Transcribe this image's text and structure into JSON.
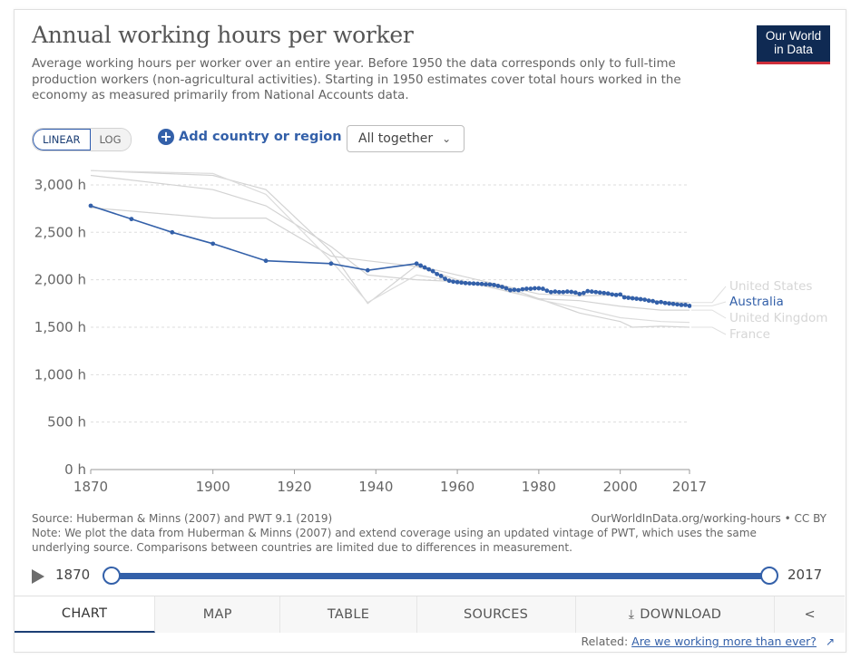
{
  "header": {
    "title": "Annual working hours per worker",
    "subtitle": "Average working hours per worker over an entire year. Before 1950 the data corresponds only to full-time production workers (non-agricultural activities). Starting in 1950 estimates cover total hours worked in the economy as measured primarily from National Accounts data.",
    "logo_line1": "Our World",
    "logo_line2": "in Data"
  },
  "controls": {
    "linear_label": "LINEAR",
    "log_label": "LOG",
    "add_country_label": "Add country or region",
    "dropdown_label": "All together"
  },
  "chart_data": {
    "type": "line",
    "title": "Annual working hours per worker",
    "ylim": [
      0,
      3200
    ],
    "xlim": [
      1870,
      2017
    ],
    "y_ticks": [
      0,
      500,
      1000,
      1500,
      2000,
      2500,
      3000
    ],
    "y_tick_labels": [
      "0 h",
      "500 h",
      "1,000 h",
      "1,500 h",
      "2,000 h",
      "2,500 h",
      "3,000 h"
    ],
    "x_ticks": [
      1870,
      1900,
      1920,
      1940,
      1960,
      1980,
      2000,
      2017
    ],
    "x_tick_labels": [
      "1870",
      "1900",
      "1920",
      "1940",
      "1960",
      "1980",
      "2000",
      "2017"
    ],
    "grid": true,
    "highlighted_series": "Australia",
    "series": [
      {
        "name": "Australia",
        "color": "#3360a9",
        "highlight": true,
        "points": [
          [
            1870,
            2780
          ],
          [
            1880,
            2640
          ],
          [
            1890,
            2500
          ],
          [
            1900,
            2380
          ],
          [
            1913,
            2200
          ],
          [
            1929,
            2170
          ],
          [
            1938,
            2100
          ],
          [
            1950,
            2170
          ],
          [
            1951,
            2150
          ],
          [
            1952,
            2130
          ],
          [
            1953,
            2110
          ],
          [
            1954,
            2090
          ],
          [
            1955,
            2060
          ],
          [
            1956,
            2040
          ],
          [
            1957,
            2010
          ],
          [
            1958,
            1990
          ],
          [
            1959,
            1980
          ],
          [
            1960,
            1975
          ],
          [
            1961,
            1970
          ],
          [
            1962,
            1965
          ],
          [
            1963,
            1962
          ],
          [
            1964,
            1960
          ],
          [
            1965,
            1958
          ],
          [
            1966,
            1955
          ],
          [
            1967,
            1952
          ],
          [
            1968,
            1950
          ],
          [
            1969,
            1945
          ],
          [
            1970,
            1935
          ],
          [
            1971,
            1925
          ],
          [
            1972,
            1910
          ],
          [
            1973,
            1890
          ],
          [
            1974,
            1895
          ],
          [
            1975,
            1890
          ],
          [
            1976,
            1900
          ],
          [
            1977,
            1905
          ],
          [
            1978,
            1905
          ],
          [
            1979,
            1910
          ],
          [
            1980,
            1910
          ],
          [
            1981,
            1905
          ],
          [
            1982,
            1885
          ],
          [
            1983,
            1870
          ],
          [
            1984,
            1875
          ],
          [
            1985,
            1870
          ],
          [
            1986,
            1870
          ],
          [
            1987,
            1875
          ],
          [
            1988,
            1872
          ],
          [
            1989,
            1865
          ],
          [
            1990,
            1850
          ],
          [
            1991,
            1860
          ],
          [
            1992,
            1880
          ],
          [
            1993,
            1875
          ],
          [
            1994,
            1870
          ],
          [
            1995,
            1865
          ],
          [
            1996,
            1860
          ],
          [
            1997,
            1855
          ],
          [
            1998,
            1845
          ],
          [
            1999,
            1840
          ],
          [
            2000,
            1845
          ],
          [
            2001,
            1815
          ],
          [
            2002,
            1810
          ],
          [
            2003,
            1805
          ],
          [
            2004,
            1800
          ],
          [
            2005,
            1795
          ],
          [
            2006,
            1790
          ],
          [
            2007,
            1780
          ],
          [
            2008,
            1775
          ],
          [
            2009,
            1760
          ],
          [
            2010,
            1765
          ],
          [
            2011,
            1755
          ],
          [
            2012,
            1750
          ],
          [
            2013,
            1745
          ],
          [
            2014,
            1740
          ],
          [
            2015,
            1735
          ],
          [
            2016,
            1735
          ],
          [
            2017,
            1725
          ]
        ]
      },
      {
        "name": "United States",
        "color": "#d3d3d3",
        "highlight": false,
        "points": [
          [
            1870,
            3100
          ],
          [
            1900,
            2950
          ],
          [
            1913,
            2780
          ],
          [
            1929,
            2350
          ],
          [
            1938,
            2050
          ],
          [
            1950,
            2000
          ],
          [
            1960,
            1980
          ],
          [
            1970,
            1950
          ],
          [
            1980,
            1850
          ],
          [
            1990,
            1830
          ],
          [
            2000,
            1840
          ],
          [
            2010,
            1770
          ],
          [
            2017,
            1760
          ]
        ]
      },
      {
        "name": "United Kingdom",
        "color": "#d3d3d3",
        "highlight": false,
        "points": [
          [
            1870,
            2760
          ],
          [
            1900,
            2650
          ],
          [
            1913,
            2650
          ],
          [
            1929,
            2250
          ],
          [
            1938,
            2200
          ],
          [
            1950,
            2140
          ],
          [
            1960,
            2000
          ],
          [
            1970,
            1900
          ],
          [
            1980,
            1800
          ],
          [
            1990,
            1780
          ],
          [
            2000,
            1720
          ],
          [
            2010,
            1680
          ],
          [
            2017,
            1680
          ]
        ]
      },
      {
        "name": "France",
        "color": "#d3d3d3",
        "highlight": false,
        "points": [
          [
            1870,
            3150
          ],
          [
            1900,
            3100
          ],
          [
            1913,
            2950
          ],
          [
            1929,
            2300
          ],
          [
            1938,
            1750
          ],
          [
            1950,
            2150
          ],
          [
            1960,
            2050
          ],
          [
            1970,
            1950
          ],
          [
            1980,
            1800
          ],
          [
            1990,
            1650
          ],
          [
            2000,
            1560
          ],
          [
            2003,
            1500
          ],
          [
            2010,
            1510
          ],
          [
            2017,
            1500
          ]
        ]
      },
      {
        "name": "",
        "color": "#dcdcdc",
        "highlight": false,
        "points": [
          [
            1870,
            3150
          ],
          [
            1900,
            3120
          ],
          [
            1913,
            2900
          ],
          [
            1929,
            2200
          ],
          [
            1938,
            1760
          ],
          [
            1950,
            2050
          ],
          [
            1960,
            1980
          ],
          [
            1970,
            1920
          ],
          [
            1980,
            1790
          ],
          [
            1990,
            1700
          ],
          [
            2000,
            1600
          ],
          [
            2010,
            1560
          ],
          [
            2017,
            1550
          ]
        ]
      }
    ],
    "labels": [
      {
        "text": "United States",
        "highlight": false
      },
      {
        "text": "Australia",
        "highlight": true
      },
      {
        "text": "United Kingdom",
        "highlight": false
      },
      {
        "text": "France",
        "highlight": false
      }
    ]
  },
  "footer": {
    "source": "Source: Huberman & Minns (2007) and PWT 9.1 (2019)",
    "url": "OurWorldInData.org/working-hours • CC BY",
    "note": "Note: We plot the data from Huberman & Minns (2007) and extend coverage using an updated vintage of PWT, which uses the same underlying source. Comparisons between countries are limited due to differences in measurement."
  },
  "timeline": {
    "start": "1870",
    "end": "2017"
  },
  "tabs": {
    "chart": "CHART",
    "map": "MAP",
    "table": "TABLE",
    "sources": "SOURCES",
    "download": "DOWNLOAD"
  },
  "related": {
    "prefix": "Related:",
    "link": "Are we working more than ever?"
  }
}
